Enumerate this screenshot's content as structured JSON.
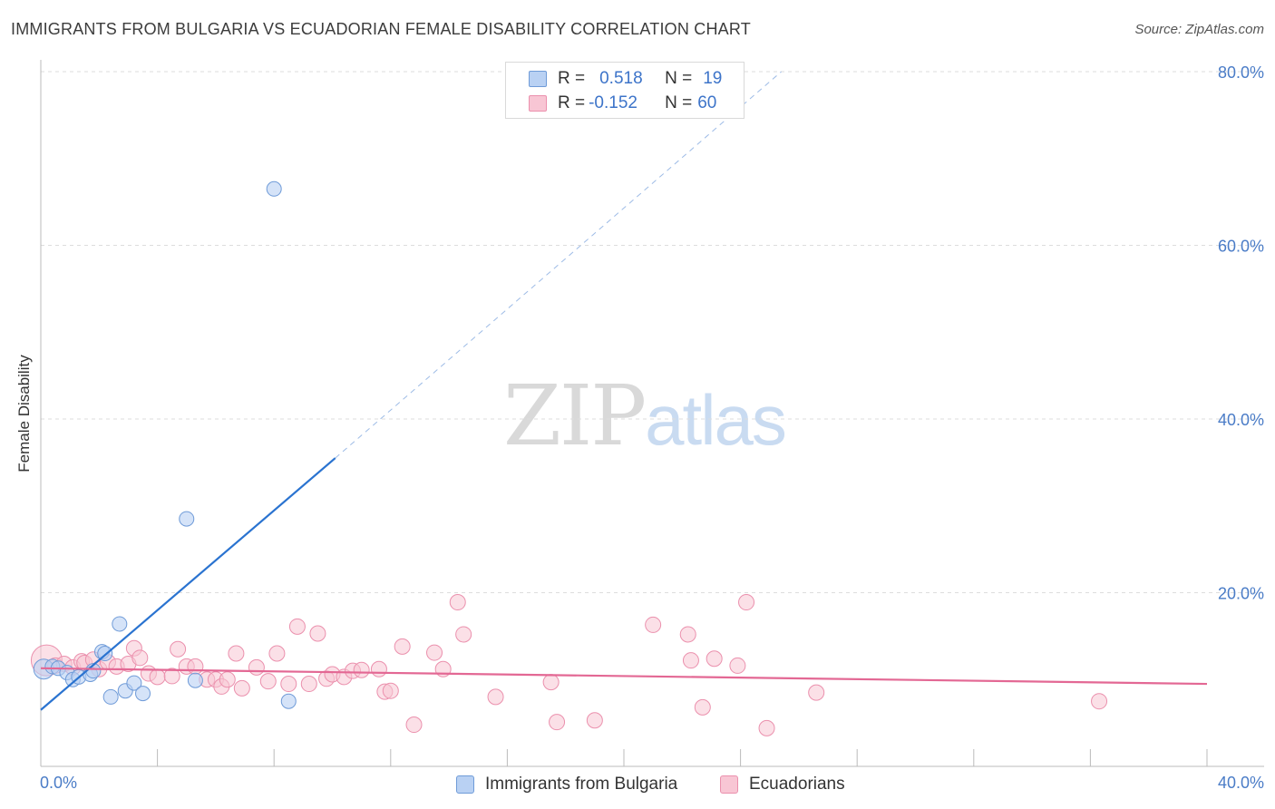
{
  "header": {
    "title": "IMMIGRANTS FROM BULGARIA VS ECUADORIAN FEMALE DISABILITY CORRELATION CHART",
    "source": "Source: ZipAtlas.com"
  },
  "watermark": {
    "zip": "ZIP",
    "atlas": "atlas"
  },
  "legend_top": {
    "rows": [
      {
        "r_label": "R =",
        "r_value": "0.518",
        "n_label": "N =",
        "n_value": "19"
      },
      {
        "r_label": "R =",
        "r_value": "-0.152",
        "n_label": "N =",
        "n_value": "60"
      }
    ]
  },
  "legend_bottom": {
    "items": [
      {
        "label": "Immigrants from Bulgaria"
      },
      {
        "label": "Ecuadorians"
      }
    ]
  },
  "colors": {
    "series1_fill": "#b9d1f3",
    "series1_stroke": "#6f9bd8",
    "series1_line": "#2a73d0",
    "series2_fill": "#f8c6d4",
    "series2_stroke": "#eb90ad",
    "series2_line": "#e36894",
    "tick_text": "#4a7cc7",
    "grid": "#dddddd"
  },
  "chart_data": {
    "type": "scatter",
    "title": "IMMIGRANTS FROM BULGARIA VS ECUADORIAN FEMALE DISABILITY CORRELATION CHART",
    "xlabel": "",
    "ylabel": "Female Disability",
    "xlim": [
      0,
      40
    ],
    "ylim": [
      0,
      80
    ],
    "x_tick_labels": [
      "0.0%",
      "40.0%"
    ],
    "y_ticks": [
      20,
      40,
      60,
      80
    ],
    "y_tick_labels": [
      "20.0%",
      "40.0%",
      "60.0%",
      "80.0%"
    ],
    "grid": true,
    "legend_position": "top-center",
    "series": [
      {
        "name": "Immigrants from Bulgaria",
        "R": 0.518,
        "N": 19,
        "points": [
          [
            0.1,
            11.2
          ],
          [
            0.4,
            11.5
          ],
          [
            0.6,
            11.3
          ],
          [
            0.9,
            10.8
          ],
          [
            1.1,
            10.0
          ],
          [
            1.3,
            10.3
          ],
          [
            1.7,
            10.6
          ],
          [
            1.8,
            11.0
          ],
          [
            2.1,
            13.2
          ],
          [
            2.4,
            8.0
          ],
          [
            2.7,
            16.4
          ],
          [
            2.9,
            8.7
          ],
          [
            3.2,
            9.6
          ],
          [
            3.5,
            8.4
          ],
          [
            5.0,
            28.5
          ],
          [
            5.3,
            9.9
          ],
          [
            8.0,
            66.5
          ],
          [
            8.5,
            7.5
          ],
          [
            2.2,
            13.0
          ]
        ],
        "trend": {
          "x": [
            0,
            10.1
          ],
          "y": [
            6.5,
            35.5
          ],
          "extended_to": [
            25.4,
            80.0
          ]
        }
      },
      {
        "name": "Ecuadorians",
        "R": -0.152,
        "N": 60,
        "points": [
          [
            0.2,
            12.2
          ],
          [
            0.5,
            11.6
          ],
          [
            0.8,
            11.8
          ],
          [
            1.1,
            11.4
          ],
          [
            1.4,
            12.1
          ],
          [
            1.5,
            11.9
          ],
          [
            1.8,
            12.3
          ],
          [
            2.0,
            11.2
          ],
          [
            2.3,
            12.0
          ],
          [
            2.6,
            11.5
          ],
          [
            3.0,
            11.8
          ],
          [
            3.2,
            13.6
          ],
          [
            3.4,
            12.5
          ],
          [
            3.7,
            10.7
          ],
          [
            4.0,
            10.3
          ],
          [
            4.5,
            10.4
          ],
          [
            4.7,
            13.5
          ],
          [
            5.0,
            11.5
          ],
          [
            5.3,
            11.5
          ],
          [
            5.7,
            10.0
          ],
          [
            6.0,
            10.0
          ],
          [
            6.2,
            9.2
          ],
          [
            6.4,
            10.0
          ],
          [
            6.7,
            13.0
          ],
          [
            6.9,
            9.0
          ],
          [
            7.4,
            11.4
          ],
          [
            7.8,
            9.8
          ],
          [
            8.1,
            13.0
          ],
          [
            8.5,
            9.5
          ],
          [
            8.8,
            16.1
          ],
          [
            9.2,
            9.5
          ],
          [
            9.5,
            15.3
          ],
          [
            9.8,
            10.1
          ],
          [
            10.0,
            10.6
          ],
          [
            10.4,
            10.3
          ],
          [
            10.7,
            11.0
          ],
          [
            11.0,
            11.1
          ],
          [
            11.6,
            11.2
          ],
          [
            11.8,
            8.6
          ],
          [
            12.0,
            8.7
          ],
          [
            12.4,
            13.8
          ],
          [
            12.8,
            4.8
          ],
          [
            13.5,
            13.1
          ],
          [
            13.8,
            11.2
          ],
          [
            14.3,
            18.9
          ],
          [
            14.5,
            15.2
          ],
          [
            15.6,
            8.0
          ],
          [
            17.5,
            9.7
          ],
          [
            17.7,
            5.1
          ],
          [
            19.0,
            5.3
          ],
          [
            21.0,
            16.3
          ],
          [
            22.2,
            15.2
          ],
          [
            22.3,
            12.2
          ],
          [
            22.7,
            6.8
          ],
          [
            23.1,
            12.4
          ],
          [
            23.9,
            11.6
          ],
          [
            24.2,
            18.9
          ],
          [
            24.9,
            4.4
          ],
          [
            26.6,
            8.5
          ],
          [
            36.3,
            7.5
          ]
        ],
        "trend": {
          "x": [
            0,
            40
          ],
          "y": [
            11.3,
            9.5
          ]
        }
      }
    ]
  }
}
